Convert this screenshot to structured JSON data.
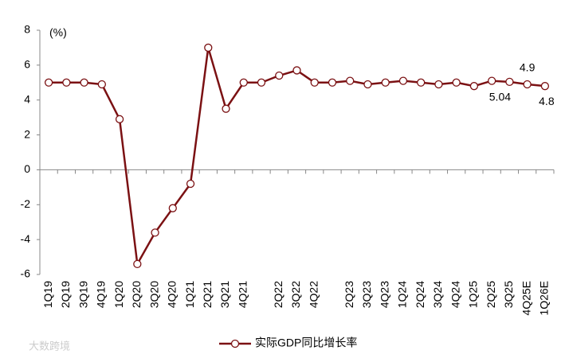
{
  "chart_data": {
    "type": "line",
    "unit_label": "(%)",
    "categories": [
      "1Q19",
      "2Q19",
      "3Q19",
      "4Q19",
      "1Q20",
      "2Q20",
      "3Q20",
      "4Q20",
      "1Q21",
      "2Q21",
      "3Q21",
      "4Q21",
      null,
      "2Q22",
      "3Q22",
      "4Q22",
      null,
      "2Q23",
      "3Q23",
      "4Q23",
      "1Q24",
      "2Q24",
      "3Q24",
      "4Q24",
      "1Q25",
      "2Q25",
      "3Q25",
      "4Q25E",
      "1Q26E"
    ],
    "series": [
      {
        "name": "实际GDP同比增长率",
        "color": "#7b1113",
        "values": [
          5.0,
          5.0,
          5.0,
          4.9,
          2.9,
          -5.4,
          -3.6,
          -2.2,
          -0.8,
          7.0,
          3.5,
          5.0,
          5.0,
          5.4,
          5.7,
          5.0,
          5.0,
          5.1,
          4.9,
          5.0,
          5.1,
          5.0,
          4.9,
          5.0,
          4.8,
          5.1,
          5.04,
          4.9,
          4.8
        ],
        "value_labels": [
          null,
          null,
          null,
          null,
          null,
          null,
          null,
          null,
          null,
          null,
          null,
          null,
          null,
          null,
          null,
          null,
          null,
          null,
          null,
          null,
          null,
          null,
          null,
          null,
          null,
          null,
          "5.04",
          "4.9",
          "4.8"
        ]
      }
    ],
    "ylim": [
      -6,
      8
    ],
    "yticks": [
      -6,
      -4,
      -2,
      0,
      2,
      4,
      6,
      8
    ],
    "watermark": "大数跨境"
  }
}
